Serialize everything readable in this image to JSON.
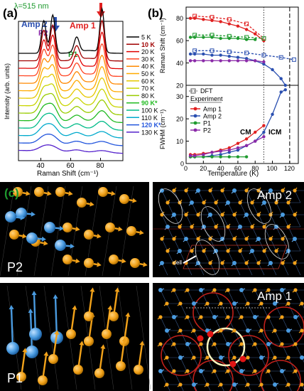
{
  "panel_a": {
    "label": "(a)",
    "wavelength": "λ=515 nm",
    "ylabel": "Intensity (arb. units)",
    "xlabel": "Raman Shift (cm⁻¹)",
    "peak_labels": {
      "amp2": "Amp 2",
      "p2": "P2",
      "p1": "P1",
      "amp1": "Amp 1"
    },
    "temps": [
      {
        "label": "5 K",
        "color": "#000000",
        "bold": false
      },
      {
        "label": "10 K",
        "color": "#a00000",
        "bold": true
      },
      {
        "label": "20 K",
        "color": "#e00000",
        "bold": false
      },
      {
        "label": "30 K",
        "color": "#ff4422",
        "bold": false
      },
      {
        "label": "40 K",
        "color": "#ff8800",
        "bold": false
      },
      {
        "label": "50 K",
        "color": "#ffaa00",
        "bold": false
      },
      {
        "label": "60 K",
        "color": "#e6c800",
        "bold": false
      },
      {
        "label": "70 K",
        "color": "#c8d400",
        "bold": false
      },
      {
        "label": "80 K",
        "color": "#99cc00",
        "bold": false
      },
      {
        "label": "90 K*",
        "color": "#22bb22",
        "bold": true
      },
      {
        "label": "100 K",
        "color": "#00bb88",
        "bold": false
      },
      {
        "label": "110 K",
        "color": "#00aacc",
        "bold": false
      },
      {
        "label": "120 K*",
        "color": "#2255dd",
        "bold": true
      },
      {
        "label": "130 K",
        "color": "#5522cc",
        "bold": false
      }
    ]
  },
  "panel_b": {
    "label": "(b)",
    "top_ylabel": "Raman Shift (cm⁻¹)",
    "bottom_ylabel": "FWHM (cm⁻¹)",
    "xlabel": "Temperature (K)",
    "legend_dft": "DFT",
    "legend_title": "Experiment",
    "legend_items": [
      {
        "label": "Amp 1",
        "color": "#e02020"
      },
      {
        "label": "Amp 2",
        "color": "#2a4fb0"
      },
      {
        "label": "P1",
        "color": "#1e9a2e"
      },
      {
        "label": "P2",
        "color": "#8a2aa8"
      }
    ],
    "cm": "CM",
    "icm": "ICM"
  },
  "panel_c": {
    "label": "(c)",
    "p2": "P2",
    "p1": "P1",
    "amp2": "Amp 2",
    "amp1": "Amp 1",
    "cell": "cell"
  },
  "chart_data": [
    {
      "type": "line",
      "title": "",
      "xlabel": "Raman Shift (cm⁻¹)",
      "ylabel": "Intensity (arb. units)",
      "xlim": [
        25,
        95
      ],
      "xticks": [
        40,
        60,
        80
      ],
      "series_note_peaks": [
        42,
        48,
        64,
        81
      ]
    },
    {
      "type": "line",
      "xlabel": "Temperature (K)",
      "ylabel": "Raman Shift (cm⁻¹)",
      "xlim": [
        0,
        130
      ],
      "ylim": [
        20,
        90
      ],
      "yticks": [
        20,
        40,
        60,
        80
      ],
      "series": [
        {
          "name": "Amp 1",
          "x": [
            5,
            10,
            20,
            30,
            40,
            50,
            60,
            70,
            80,
            90
          ],
          "y": [
            80,
            80,
            79,
            78,
            77,
            75,
            73,
            70,
            66,
            60
          ]
        },
        {
          "name": "Amp 2",
          "x": [
            5,
            10,
            20,
            30,
            40,
            50,
            60,
            70,
            80,
            90,
            100,
            110,
            115
          ],
          "y": [
            48,
            48,
            48,
            47,
            47,
            46,
            45,
            44,
            42,
            39,
            34,
            26,
            20
          ]
        },
        {
          "name": "P1",
          "x": [
            5,
            10,
            20,
            30,
            40,
            50,
            60,
            70,
            80
          ],
          "y": [
            63,
            63,
            63,
            63,
            62,
            62,
            62,
            61,
            61
          ]
        },
        {
          "name": "P2",
          "x": [
            5,
            10,
            20,
            30,
            40,
            50,
            60,
            70,
            80,
            90
          ],
          "y": [
            42,
            42,
            42,
            42,
            42,
            42,
            42,
            42,
            42,
            41
          ]
        },
        {
          "name": "DFT Amp 1",
          "x": [
            10,
            30,
            50,
            70,
            90
          ],
          "y": [
            82,
            81,
            79,
            75,
            62
          ]
        },
        {
          "name": "DFT Amp 2",
          "x": [
            10,
            30,
            50,
            70,
            90,
            110,
            125
          ],
          "y": [
            51,
            51,
            50,
            49,
            47,
            45,
            43
          ]
        },
        {
          "name": "DFT P1",
          "x": [
            10,
            30,
            50,
            70,
            90
          ],
          "y": [
            65,
            65,
            64,
            63,
            62
          ]
        }
      ]
    },
    {
      "type": "line",
      "xlabel": "Temperature (K)",
      "ylabel": "FWHM (cm⁻¹)",
      "xlim": [
        0,
        130
      ],
      "ylim": [
        0,
        35
      ],
      "yticks": [
        0,
        10,
        20,
        30
      ],
      "xticks": [
        0,
        20,
        40,
        60,
        80,
        100,
        120
      ],
      "series": [
        {
          "name": "Amp 1",
          "x": [
            5,
            10,
            20,
            30,
            40,
            50,
            60,
            70,
            80,
            90
          ],
          "y": [
            4,
            4,
            4.5,
            5,
            6,
            7,
            9,
            11,
            14,
            17
          ]
        },
        {
          "name": "Amp 2",
          "x": [
            5,
            10,
            20,
            30,
            40,
            50,
            60,
            70,
            80,
            90,
            100,
            110,
            115
          ],
          "y": [
            3,
            3,
            3,
            3.5,
            4,
            5,
            6,
            8,
            10,
            14,
            22,
            32,
            33
          ]
        },
        {
          "name": "P1",
          "x": [
            5,
            10,
            20,
            30,
            40,
            50,
            60,
            70
          ],
          "y": [
            3,
            3,
            3,
            3,
            3,
            3,
            3,
            3
          ]
        },
        {
          "name": "P2",
          "x": [
            5,
            10,
            20,
            30,
            40,
            50,
            60,
            70,
            80,
            90
          ],
          "y": [
            3.5,
            3.5,
            4,
            5,
            5.5,
            6,
            7,
            8,
            10,
            12
          ]
        }
      ]
    }
  ]
}
